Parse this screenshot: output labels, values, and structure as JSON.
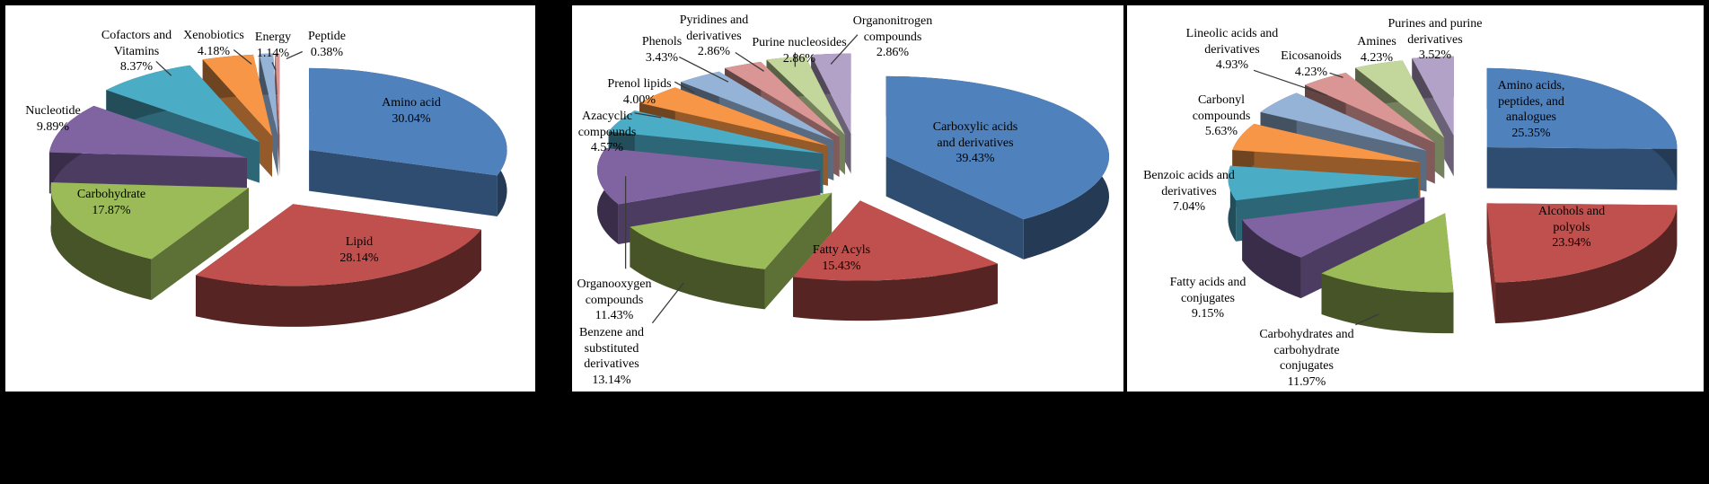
{
  "figure": {
    "description": "Three 3D exploded pie charts of metabolite / compound class composition",
    "background_color": "#000000",
    "panel_background": "#ffffff",
    "panel_border_color": "#000000"
  },
  "chart_data": [
    {
      "type": "pie",
      "style": "3d-exploded",
      "title": "",
      "legend_position": "none",
      "label_format": "category name + percentage; large slices labeled inside, small slices outside with leader lines",
      "slices": [
        {
          "label": "Amino acid",
          "value": 30.04,
          "pct_label": "30.04%",
          "color": "#4F81BD"
        },
        {
          "label": "Lipid",
          "value": 28.14,
          "pct_label": "28.14%",
          "color": "#C0504D"
        },
        {
          "label": "Carbohydrate",
          "value": 17.87,
          "pct_label": "17.87%",
          "color": "#9BBB59"
        },
        {
          "label": "Nucleotide",
          "value": 9.89,
          "pct_label": "9.89%",
          "color": "#8064A2"
        },
        {
          "label": "Cofactors and Vitamins",
          "value": 8.37,
          "pct_label": "8.37%",
          "color": "#4BACC6"
        },
        {
          "label": "Xenobiotics",
          "value": 4.18,
          "pct_label": "4.18%",
          "color": "#F79646"
        },
        {
          "label": "Energy",
          "value": 1.14,
          "pct_label": "1.14%",
          "color": "#95B3D7"
        },
        {
          "label": "Peptide",
          "value": 0.38,
          "pct_label": "0.38%",
          "color": "#D99694"
        }
      ]
    },
    {
      "type": "pie",
      "style": "3d-exploded",
      "title": "",
      "legend_position": "none",
      "label_format": "category name + percentage; large slices labeled inside, small slices outside with leader lines",
      "slices": [
        {
          "label": "Carboxylic acids and derivatives",
          "value": 39.43,
          "pct_label": "39.43%",
          "color": "#4F81BD"
        },
        {
          "label": "Fatty Acyls",
          "value": 15.43,
          "pct_label": "15.43%",
          "color": "#C0504D"
        },
        {
          "label": "Benzene and substituted derivatives",
          "value": 13.14,
          "pct_label": "13.14%",
          "color": "#9BBB59"
        },
        {
          "label": "Organooxygen compounds",
          "value": 11.43,
          "pct_label": "11.43%",
          "color": "#8064A2"
        },
        {
          "label": "Azacyclic compounds",
          "value": 4.57,
          "pct_label": "4.57%",
          "color": "#4BACC6"
        },
        {
          "label": "Prenol lipids",
          "value": 4.0,
          "pct_label": "4.00%",
          "color": "#F79646"
        },
        {
          "label": "Phenols",
          "value": 3.43,
          "pct_label": "3.43%",
          "color": "#95B3D7"
        },
        {
          "label": "Pyridines and derivatives",
          "value": 2.86,
          "pct_label": "2.86%",
          "color": "#D99694"
        },
        {
          "label": "Purine nucleosides",
          "value": 2.86,
          "pct_label": "2.86%",
          "color": "#C3D69B"
        },
        {
          "label": "Organonitrogen compounds",
          "value": 2.86,
          "pct_label": "2.86%",
          "color": "#B3A2C7"
        }
      ]
    },
    {
      "type": "pie",
      "style": "3d-exploded",
      "title": "",
      "legend_position": "none",
      "label_format": "category name + percentage; large slices labeled inside, small slices outside with leader lines",
      "slices": [
        {
          "label": "Amino acids, peptides, and analogues",
          "value": 25.35,
          "pct_label": "25.35%",
          "color": "#4F81BD"
        },
        {
          "label": "Alcohols and polyols",
          "value": 23.94,
          "pct_label": "23.94%",
          "color": "#C0504D"
        },
        {
          "label": "Carbohydrates and carbohydrate conjugates",
          "value": 11.97,
          "pct_label": "11.97%",
          "color": "#9BBB59"
        },
        {
          "label": "Fatty acids and conjugates",
          "value": 9.15,
          "pct_label": "9.15%",
          "color": "#8064A2"
        },
        {
          "label": "Benzoic acids and derivatives",
          "value": 7.04,
          "pct_label": "7.04%",
          "color": "#4BACC6"
        },
        {
          "label": "Carbonyl compounds",
          "value": 5.63,
          "pct_label": "5.63%",
          "color": "#F79646"
        },
        {
          "label": "Lineolic acids and derivatives",
          "value": 4.93,
          "pct_label": "4.93%",
          "color": "#95B3D7"
        },
        {
          "label": "Eicosanoids",
          "value": 4.23,
          "pct_label": "4.23%",
          "color": "#D99694"
        },
        {
          "label": "Amines",
          "value": 4.23,
          "pct_label": "4.23%",
          "color": "#C3D69B"
        },
        {
          "label": "Purines and purine derivatives",
          "value": 3.52,
          "pct_label": "3.52%",
          "color": "#B3A2C7"
        }
      ]
    }
  ]
}
